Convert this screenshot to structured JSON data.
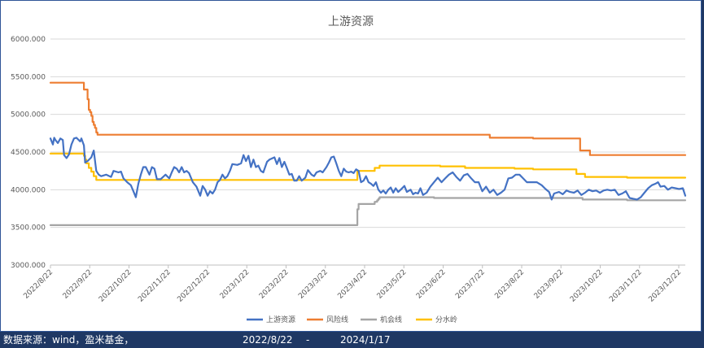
{
  "chart_data": {
    "type": "line",
    "title": "上游资源",
    "ylim": [
      3000,
      6000
    ],
    "yticks": [
      "3000.000",
      "3500.000",
      "4000.000",
      "4500.000",
      "5000.000",
      "5500.000",
      "6000.000"
    ],
    "xticks": [
      "2022/8/22",
      "2022/9/22",
      "2022/10/22",
      "2022/11/22",
      "2022/12/22",
      "2023/1/22",
      "2023/2/22",
      "2023/3/22",
      "2023/4/22",
      "2023/5/22",
      "2023/6/22",
      "2023/7/22",
      "2023/8/22",
      "2023/9/22",
      "2023/10/22",
      "2023/11/22",
      "2023/12/22"
    ],
    "x_range_days": [
      0,
      513
    ],
    "grid": "horizontal",
    "legend_position": "bottom",
    "series": [
      {
        "name": "上游资源",
        "color": "#4472c4",
        "width": 2.2,
        "points": [
          [
            0,
            4680
          ],
          [
            2,
            4600
          ],
          [
            3,
            4690
          ],
          [
            4,
            4660
          ],
          [
            6,
            4620
          ],
          [
            8,
            4680
          ],
          [
            10,
            4660
          ],
          [
            11,
            4460
          ],
          [
            13,
            4420
          ],
          [
            15,
            4470
          ],
          [
            17,
            4600
          ],
          [
            19,
            4680
          ],
          [
            21,
            4690
          ],
          [
            24,
            4640
          ],
          [
            25,
            4680
          ],
          [
            27,
            4590
          ],
          [
            28,
            4360
          ],
          [
            30,
            4380
          ],
          [
            33,
            4430
          ],
          [
            35,
            4520
          ],
          [
            37,
            4250
          ],
          [
            39,
            4200
          ],
          [
            41,
            4180
          ],
          [
            45,
            4200
          ],
          [
            49,
            4170
          ],
          [
            51,
            4250
          ],
          [
            55,
            4230
          ],
          [
            57,
            4240
          ],
          [
            59,
            4150
          ],
          [
            62,
            4100
          ],
          [
            65,
            4060
          ],
          [
            67,
            3980
          ],
          [
            69,
            3900
          ],
          [
            71,
            4080
          ],
          [
            73,
            4200
          ],
          [
            75,
            4300
          ],
          [
            77,
            4300
          ],
          [
            80,
            4200
          ],
          [
            82,
            4300
          ],
          [
            84,
            4280
          ],
          [
            86,
            4140
          ],
          [
            89,
            4140
          ],
          [
            93,
            4200
          ],
          [
            96,
            4150
          ],
          [
            98,
            4230
          ],
          [
            100,
            4300
          ],
          [
            102,
            4280
          ],
          [
            104,
            4230
          ],
          [
            106,
            4300
          ],
          [
            108,
            4230
          ],
          [
            110,
            4250
          ],
          [
            112,
            4220
          ],
          [
            115,
            4100
          ],
          [
            118,
            4040
          ],
          [
            121,
            3920
          ],
          [
            123,
            4050
          ],
          [
            125,
            4000
          ],
          [
            127,
            3920
          ],
          [
            129,
            3980
          ],
          [
            131,
            3950
          ],
          [
            133,
            4000
          ],
          [
            135,
            4100
          ],
          [
            137,
            4130
          ],
          [
            139,
            4200
          ],
          [
            141,
            4150
          ],
          [
            143,
            4180
          ],
          [
            145,
            4250
          ],
          [
            147,
            4340
          ],
          [
            151,
            4330
          ],
          [
            154,
            4350
          ],
          [
            156,
            4460
          ],
          [
            158,
            4380
          ],
          [
            160,
            4450
          ],
          [
            162,
            4300
          ],
          [
            164,
            4400
          ],
          [
            166,
            4300
          ],
          [
            168,
            4320
          ],
          [
            170,
            4250
          ],
          [
            172,
            4230
          ],
          [
            175,
            4370
          ],
          [
            177,
            4400
          ],
          [
            181,
            4430
          ],
          [
            183,
            4340
          ],
          [
            185,
            4420
          ],
          [
            187,
            4300
          ],
          [
            189,
            4370
          ],
          [
            191,
            4290
          ],
          [
            193,
            4200
          ],
          [
            195,
            4210
          ],
          [
            197,
            4120
          ],
          [
            199,
            4120
          ],
          [
            201,
            4180
          ],
          [
            203,
            4120
          ],
          [
            206,
            4160
          ],
          [
            208,
            4260
          ],
          [
            211,
            4200
          ],
          [
            213,
            4180
          ],
          [
            215,
            4230
          ],
          [
            218,
            4250
          ],
          [
            220,
            4230
          ],
          [
            223,
            4300
          ],
          [
            225,
            4360
          ],
          [
            227,
            4430
          ],
          [
            229,
            4440
          ],
          [
            231,
            4350
          ],
          [
            233,
            4250
          ],
          [
            235,
            4180
          ],
          [
            237,
            4280
          ],
          [
            239,
            4240
          ],
          [
            241,
            4230
          ],
          [
            243,
            4240
          ],
          [
            245,
            4220
          ],
          [
            247,
            4270
          ],
          [
            249,
            4250
          ],
          [
            251,
            4100
          ],
          [
            253,
            4120
          ],
          [
            255,
            4180
          ],
          [
            257,
            4100
          ],
          [
            259,
            4080
          ],
          [
            261,
            4050
          ],
          [
            263,
            4100
          ],
          [
            265,
            4000
          ],
          [
            267,
            3960
          ],
          [
            269,
            3990
          ],
          [
            271,
            3950
          ],
          [
            273,
            4000
          ],
          [
            275,
            4030
          ],
          [
            277,
            3960
          ],
          [
            279,
            4020
          ],
          [
            281,
            3970
          ],
          [
            283,
            4000
          ],
          [
            286,
            4050
          ],
          [
            288,
            3970
          ],
          [
            291,
            4000
          ],
          [
            293,
            3940
          ],
          [
            295,
            3960
          ],
          [
            297,
            3950
          ],
          [
            299,
            4020
          ],
          [
            301,
            3930
          ],
          [
            304,
            3960
          ],
          [
            307,
            4040
          ],
          [
            310,
            4100
          ],
          [
            313,
            4160
          ],
          [
            316,
            4100
          ],
          [
            319,
            4150
          ],
          [
            322,
            4200
          ],
          [
            325,
            4230
          ],
          [
            328,
            4170
          ],
          [
            331,
            4120
          ],
          [
            334,
            4190
          ],
          [
            337,
            4210
          ],
          [
            340,
            4150
          ],
          [
            343,
            4100
          ],
          [
            346,
            4100
          ],
          [
            349,
            3980
          ],
          [
            352,
            4040
          ],
          [
            355,
            3960
          ],
          [
            358,
            4000
          ],
          [
            361,
            3930
          ],
          [
            364,
            3960
          ],
          [
            367,
            4000
          ],
          [
            370,
            4150
          ],
          [
            373,
            4160
          ],
          [
            376,
            4200
          ],
          [
            379,
            4200
          ],
          [
            382,
            4150
          ],
          [
            385,
            4100
          ],
          [
            389,
            4100
          ],
          [
            393,
            4100
          ],
          [
            397,
            4060
          ],
          [
            400,
            4010
          ],
          [
            403,
            3970
          ],
          [
            405,
            3870
          ],
          [
            407,
            3950
          ],
          [
            409,
            3960
          ],
          [
            411,
            3970
          ],
          [
            414,
            3940
          ],
          [
            417,
            3990
          ],
          [
            420,
            3970
          ],
          [
            423,
            3960
          ],
          [
            426,
            3990
          ],
          [
            429,
            3930
          ],
          [
            432,
            3960
          ],
          [
            435,
            4000
          ],
          [
            438,
            3980
          ],
          [
            441,
            3990
          ],
          [
            444,
            3960
          ],
          [
            447,
            3990
          ],
          [
            450,
            4000
          ],
          [
            453,
            3990
          ],
          [
            456,
            4000
          ],
          [
            459,
            3930
          ],
          [
            462,
            3950
          ],
          [
            465,
            3980
          ],
          [
            468,
            3890
          ],
          [
            471,
            3880
          ],
          [
            474,
            3870
          ],
          [
            477,
            3900
          ],
          [
            480,
            3960
          ],
          [
            483,
            4020
          ],
          [
            486,
            4060
          ],
          [
            489,
            4080
          ],
          [
            491,
            4100
          ],
          [
            493,
            4040
          ],
          [
            496,
            4050
          ],
          [
            499,
            4000
          ],
          [
            502,
            4030
          ],
          [
            505,
            4020
          ],
          [
            508,
            4010
          ],
          [
            511,
            4020
          ],
          [
            513,
            3920
          ]
        ]
      },
      {
        "name": "风险线",
        "color": "#ed7d31",
        "width": 2.2,
        "points": [
          [
            0,
            5420
          ],
          [
            27,
            5420
          ],
          [
            27,
            5330
          ],
          [
            30,
            5330
          ],
          [
            30,
            5200
          ],
          [
            31,
            5200
          ],
          [
            31,
            5060
          ],
          [
            32,
            5060
          ],
          [
            32,
            5030
          ],
          [
            33,
            5030
          ],
          [
            33,
            4980
          ],
          [
            34,
            4980
          ],
          [
            34,
            4900
          ],
          [
            35,
            4900
          ],
          [
            35,
            4860
          ],
          [
            36,
            4860
          ],
          [
            36,
            4820
          ],
          [
            37,
            4820
          ],
          [
            37,
            4760
          ],
          [
            38,
            4760
          ],
          [
            38,
            4730
          ],
          [
            355,
            4730
          ],
          [
            355,
            4690
          ],
          [
            390,
            4690
          ],
          [
            390,
            4680
          ],
          [
            428,
            4680
          ],
          [
            428,
            4520
          ],
          [
            436,
            4520
          ],
          [
            436,
            4460
          ],
          [
            513,
            4460
          ]
        ]
      },
      {
        "name": "机会线",
        "color": "#a5a5a5",
        "width": 2.2,
        "points": [
          [
            0,
            3530
          ],
          [
            248,
            3530
          ],
          [
            248,
            3740
          ],
          [
            249,
            3740
          ],
          [
            249,
            3810
          ],
          [
            262,
            3810
          ],
          [
            262,
            3840
          ],
          [
            264,
            3840
          ],
          [
            264,
            3860
          ],
          [
            265,
            3860
          ],
          [
            265,
            3880
          ],
          [
            266,
            3880
          ],
          [
            266,
            3900
          ],
          [
            310,
            3900
          ],
          [
            310,
            3890
          ],
          [
            430,
            3890
          ],
          [
            430,
            3870
          ],
          [
            466,
            3870
          ],
          [
            466,
            3860
          ],
          [
            513,
            3860
          ]
        ]
      },
      {
        "name": "分水岭",
        "color": "#ffc000",
        "width": 2.2,
        "points": [
          [
            0,
            4480
          ],
          [
            27,
            4480
          ],
          [
            27,
            4450
          ],
          [
            28,
            4450
          ],
          [
            28,
            4400
          ],
          [
            29,
            4400
          ],
          [
            29,
            4350
          ],
          [
            31,
            4350
          ],
          [
            31,
            4290
          ],
          [
            33,
            4290
          ],
          [
            33,
            4240
          ],
          [
            35,
            4240
          ],
          [
            35,
            4180
          ],
          [
            37,
            4180
          ],
          [
            37,
            4130
          ],
          [
            248,
            4130
          ],
          [
            248,
            4250
          ],
          [
            262,
            4250
          ],
          [
            262,
            4290
          ],
          [
            266,
            4290
          ],
          [
            266,
            4320
          ],
          [
            315,
            4320
          ],
          [
            315,
            4310
          ],
          [
            335,
            4310
          ],
          [
            335,
            4290
          ],
          [
            375,
            4290
          ],
          [
            375,
            4280
          ],
          [
            390,
            4280
          ],
          [
            390,
            4270
          ],
          [
            425,
            4270
          ],
          [
            425,
            4210
          ],
          [
            432,
            4210
          ],
          [
            432,
            4170
          ],
          [
            466,
            4170
          ],
          [
            466,
            4160
          ],
          [
            513,
            4160
          ]
        ]
      }
    ]
  },
  "footer": {
    "source": "数据来源：wind，盈米基金，",
    "start_date": "2022/8/22",
    "separator": "-",
    "end_date": "2024/1/17"
  }
}
